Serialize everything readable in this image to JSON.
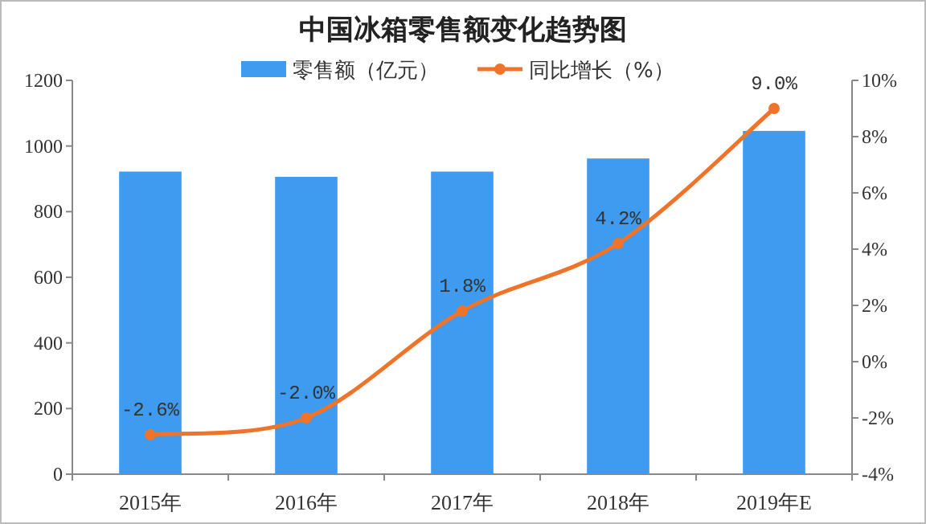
{
  "chart_data": {
    "type": "bar",
    "title": "中国冰箱零售额变化趋势图",
    "categories": [
      "2015年",
      "2016年",
      "2017年",
      "2018年",
      "2019年E"
    ],
    "series": [
      {
        "name": "零售额（亿元）",
        "color": "#3e9bef",
        "values": [
          922,
          906,
          922,
          962,
          1046
        ]
      },
      {
        "name": "同比增长（%）",
        "type": "line",
        "axis": "y2",
        "color": "#f0732a",
        "marker": "circle",
        "values": [
          -2.6,
          -2.0,
          1.8,
          4.2,
          9.0
        ],
        "value_labels": [
          "-2.6%",
          "-2.0%",
          "1.8%",
          "4.2%",
          "9.0%"
        ]
      }
    ],
    "ylim": [
      0,
      1200
    ],
    "yticks": [
      0,
      200,
      400,
      600,
      800,
      1000,
      1200
    ],
    "y2lim": [
      -4,
      10
    ],
    "y2ticks": [
      {
        "value": -4,
        "label": "-4%"
      },
      {
        "value": -2,
        "label": "-2%"
      },
      {
        "value": 0,
        "label": "0%"
      },
      {
        "value": 2,
        "label": "2%"
      },
      {
        "value": 4,
        "label": "4%"
      },
      {
        "value": 6,
        "label": "6%"
      },
      {
        "value": 8,
        "label": "8%"
      },
      {
        "value": 10,
        "label": "10%"
      }
    ],
    "legend": "top",
    "grid": false
  }
}
